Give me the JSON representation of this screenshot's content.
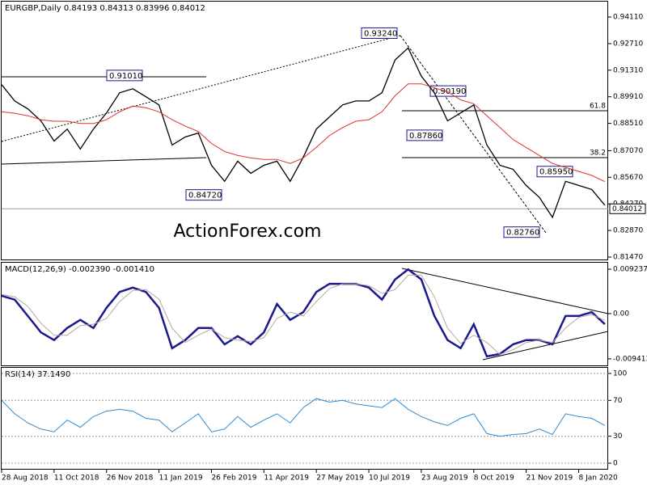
{
  "chart_data": [
    {
      "type": "line",
      "title": "EURGBP,Daily  0.84193 0.84313 0.83996 0.84012",
      "watermark": "ActionForex.com",
      "x": [
        0,
        8,
        16,
        24,
        32,
        40,
        48,
        56,
        64,
        72,
        80,
        88,
        96,
        104,
        112,
        120,
        128,
        136,
        144,
        152,
        160,
        168,
        176,
        184,
        192,
        200,
        208,
        216,
        224,
        232,
        240,
        248,
        256,
        264,
        272,
        280,
        288,
        296,
        304,
        312,
        320,
        328,
        336,
        344,
        352,
        360,
        368
      ],
      "xlim": [
        0,
        370
      ],
      "ylim": [
        0.813,
        0.9492
      ],
      "yticks": [
        {
          "value": 0.9411,
          "label": "0.94110"
        },
        {
          "value": 0.9271,
          "label": "0.92710"
        },
        {
          "value": 0.9131,
          "label": "0.91310"
        },
        {
          "value": 0.8991,
          "label": "0.89910"
        },
        {
          "value": 0.8851,
          "label": "0.88510"
        },
        {
          "value": 0.8707,
          "label": "0.87070"
        },
        {
          "value": 0.8567,
          "label": "0.85670"
        },
        {
          "value": 0.8427,
          "label": "0.84270"
        },
        {
          "value": 0.8287,
          "label": "0.82870"
        },
        {
          "value": 0.8147,
          "label": "0.81470"
        }
      ],
      "grid": false,
      "last_price": 0.84012,
      "annotations": [
        {
          "value": 0.9324,
          "label": "0.93240"
        },
        {
          "value": 0.9101,
          "label": "0.91010"
        },
        {
          "value": 0.9019,
          "label": "0.90190"
        },
        {
          "value": 0.8786,
          "label": "0.87860"
        },
        {
          "value": 0.8595,
          "label": "0.85950"
        },
        {
          "value": 0.8472,
          "label": "0.84720"
        },
        {
          "value": 0.8276,
          "label": "0.82760"
        }
      ],
      "fib_levels": [
        61.8,
        38.2
      ],
      "series": [
        {
          "color": "#000000",
          "values": [
            0.9055,
            0.8969,
            0.8927,
            0.8864,
            0.8758,
            0.8821,
            0.8716,
            0.8821,
            0.8906,
            0.9012,
            0.9033,
            0.8991,
            0.8948,
            0.8737,
            0.8779,
            0.88,
            0.863,
            0.8546,
            0.8652,
            0.8588,
            0.863,
            0.8652,
            0.8546,
            0.8673,
            0.8821,
            0.8885,
            0.8948,
            0.8969,
            0.8969,
            0.9012,
            0.9185,
            0.9248,
            0.91,
            0.9012,
            0.8864,
            0.8906,
            0.8948,
            0.8737,
            0.863,
            0.8609,
            0.8524,
            0.8461,
            0.8356,
            0.8546,
            0.8524,
            0.8503,
            0.842
          ]
        },
        {
          "color": "#e03030",
          "values": [
            0.8912,
            0.8904,
            0.8891,
            0.887,
            0.8862,
            0.8862,
            0.885,
            0.885,
            0.887,
            0.8912,
            0.8942,
            0.8933,
            0.8912,
            0.887,
            0.8837,
            0.8808,
            0.8745,
            0.8703,
            0.8682,
            0.8669,
            0.8661,
            0.8661,
            0.864,
            0.8669,
            0.8724,
            0.8787,
            0.8829,
            0.8862,
            0.887,
            0.8912,
            0.8996,
            0.9059,
            0.9059,
            0.9038,
            0.9017,
            0.8975,
            0.8954,
            0.8891,
            0.8829,
            0.8766,
            0.8724,
            0.8682,
            0.864,
            0.8619,
            0.8598,
            0.8577,
            0.8544
          ]
        }
      ]
    },
    {
      "type": "line",
      "title": "MACD(12,26,9) -0.002390 -0.001410",
      "x": [
        0,
        8,
        16,
        24,
        32,
        40,
        48,
        56,
        64,
        72,
        80,
        88,
        96,
        104,
        112,
        120,
        128,
        136,
        144,
        152,
        160,
        168,
        176,
        184,
        192,
        200,
        208,
        216,
        224,
        232,
        240,
        248,
        256,
        264,
        272,
        280,
        288,
        296,
        304,
        312,
        320,
        328,
        336,
        344,
        352,
        360,
        368
      ],
      "xlim": [
        0,
        370
      ],
      "ylim": [
        -0.01093,
        0.01058
      ],
      "yticks": [
        0.009237,
        {
          "value": 0,
          "label": "0.00"
        },
        -0.009413
      ],
      "grid": false,
      "series": [
        {
          "color": "#1a1a8c",
          "values": [
            0.0037,
            0.0029,
            -0.0005,
            -0.0039,
            -0.0055,
            -0.003,
            -0.0013,
            -0.003,
            0.0012,
            0.0045,
            0.0054,
            0.0045,
            0.0012,
            -0.0072,
            -0.0055,
            -0.003,
            -0.003,
            -0.0064,
            -0.0047,
            -0.0064,
            -0.0039,
            0.002,
            -0.0013,
            0.0003,
            0.0045,
            0.0062,
            0.0062,
            0.0062,
            0.0054,
            0.0029,
            0.0071,
            0.0092,
            0.0071,
            -0.0005,
            -0.0055,
            -0.0072,
            -0.0022,
            -0.0089,
            -0.0084,
            -0.0064,
            -0.0055,
            -0.0055,
            -0.0064,
            -0.0005,
            -0.0005,
            0.0003,
            -0.0022
          ]
        },
        {
          "color": "#b8a8a0",
          "values": [
            0.004,
            0.0035,
            0.0015,
            -0.002,
            -0.0045,
            -0.0045,
            -0.0025,
            -0.0022,
            -0.001,
            0.0025,
            0.0048,
            0.005,
            0.003,
            -0.003,
            -0.006,
            -0.0045,
            -0.0032,
            -0.005,
            -0.0055,
            -0.0058,
            -0.005,
            -0.001,
            0.0003,
            -0.0005,
            0.0025,
            0.0052,
            0.0062,
            0.0062,
            0.0058,
            0.0042,
            0.005,
            0.008,
            0.008,
            0.0035,
            -0.003,
            -0.0062,
            -0.0045,
            -0.006,
            -0.0085,
            -0.0075,
            -0.006,
            -0.0055,
            -0.006,
            -0.003,
            -0.0008,
            -0.0002,
            -0.0014
          ]
        }
      ]
    },
    {
      "type": "line",
      "title": "RSI(14) 37.1490",
      "x": [
        0,
        8,
        16,
        24,
        32,
        40,
        48,
        56,
        64,
        72,
        80,
        88,
        96,
        104,
        112,
        120,
        128,
        136,
        144,
        152,
        160,
        168,
        176,
        184,
        192,
        200,
        208,
        216,
        224,
        232,
        240,
        248,
        256,
        264,
        272,
        280,
        288,
        296,
        304,
        312,
        320,
        328,
        336,
        344,
        352,
        360,
        368
      ],
      "xlim": [
        0,
        370
      ],
      "ylim": [
        -7.2,
        106.3
      ],
      "yticks": [
        100,
        70,
        30,
        0
      ],
      "grid": true,
      "xticks": [
        {
          "value": 0,
          "label": "28 Aug 2018"
        },
        {
          "value": 32,
          "label": "11 Oct 2018"
        },
        {
          "value": 64,
          "label": "26 Nov 2018"
        },
        {
          "value": 96,
          "label": "11 Jan 2019"
        },
        {
          "value": 128,
          "label": "26 Feb 2019"
        },
        {
          "value": 160,
          "label": "11 Apr 2019"
        },
        {
          "value": 192,
          "label": "27 May 2019"
        },
        {
          "value": 224,
          "label": "10 Jul 2019"
        },
        {
          "value": 256,
          "label": "23 Aug 2019"
        },
        {
          "value": 288,
          "label": "8 Oct 2019"
        },
        {
          "value": 320,
          "label": "21 Nov 2019"
        },
        {
          "value": 352,
          "label": "8 Jan 2020"
        }
      ],
      "series": [
        {
          "color": "#2f8ad0",
          "values": [
            70,
            55,
            45,
            38,
            35,
            48,
            40,
            52,
            58,
            60,
            58,
            50,
            48,
            35,
            45,
            55,
            35,
            38,
            52,
            40,
            48,
            55,
            45,
            62,
            72,
            68,
            70,
            66,
            64,
            62,
            72,
            60,
            52,
            46,
            42,
            50,
            55,
            33,
            30,
            32,
            33,
            38,
            32,
            55,
            52,
            50,
            42
          ]
        }
      ]
    }
  ]
}
